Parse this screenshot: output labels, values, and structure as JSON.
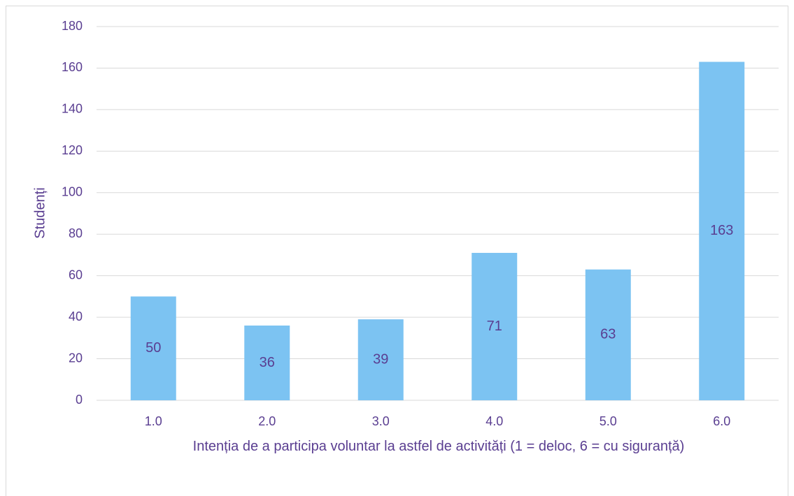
{
  "chart_data": {
    "type": "bar",
    "categories": [
      "1.0",
      "2.0",
      "3.0",
      "4.0",
      "5.0",
      "6.0"
    ],
    "values": [
      50,
      36,
      39,
      71,
      63,
      163
    ],
    "color": "#7cc3f2",
    "y_label": "Studenți",
    "x_label": "Intenția de a participa voluntar la astfel de activități (1 = deloc, 6 = cu siguranță)",
    "ylim": [
      0,
      180
    ],
    "yticks": [
      0,
      20,
      40,
      60,
      80,
      100,
      120,
      140,
      160,
      180
    ],
    "grid": true
  }
}
